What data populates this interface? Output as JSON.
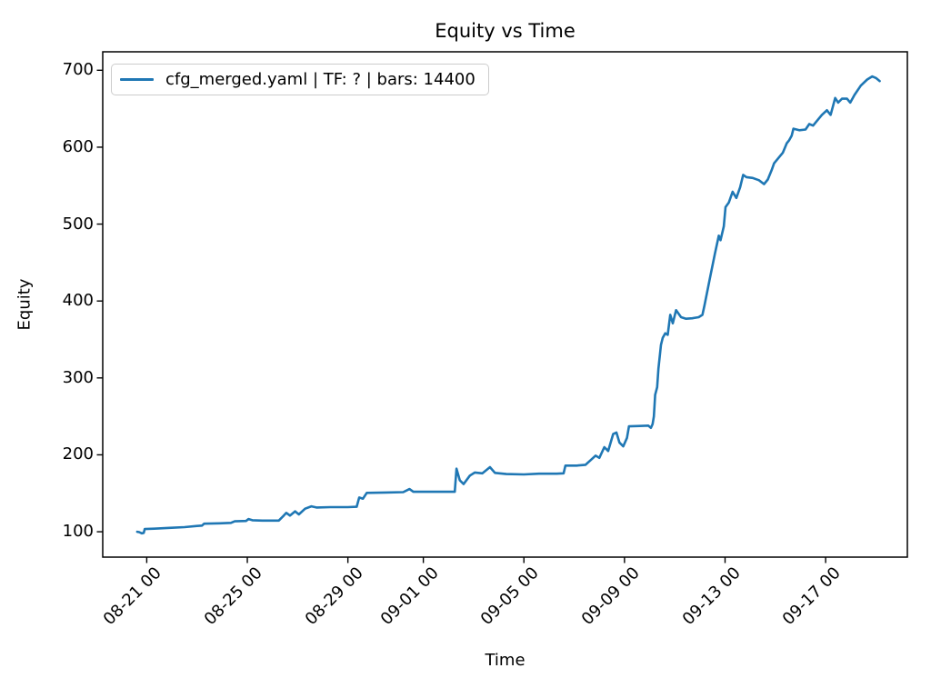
{
  "title": "Equity vs Time",
  "axes": {
    "xlabel": "Time",
    "ylabel": "Equity"
  },
  "legend": {
    "entries": [
      {
        "label": "cfg_merged.yaml | TF: ? | bars: 14400",
        "color": "#1f77b4"
      }
    ],
    "position": "upper left"
  },
  "colors": {
    "line": "#1f77b4",
    "spine": "#000000",
    "background": "#ffffff",
    "legend_border": "#cccccc"
  },
  "chart_data": {
    "type": "line",
    "title": "Equity vs Time",
    "xlabel": "Time",
    "ylabel": "Equity",
    "grid": false,
    "legend_position": "upper left",
    "x_unit": "days relative to tick 08-21 00 (labels are MM-DD HH)",
    "xlim": [
      -1.75,
      30.25
    ],
    "ylim": [
      67,
      724
    ],
    "x_ticks": [
      {
        "day": 0,
        "label": "08-21 00"
      },
      {
        "day": 4,
        "label": "08-25 00"
      },
      {
        "day": 8,
        "label": "08-29 00"
      },
      {
        "day": 11,
        "label": "09-01 00"
      },
      {
        "day": 15,
        "label": "09-05 00"
      },
      {
        "day": 19,
        "label": "09-09 00"
      },
      {
        "day": 23,
        "label": "09-13 00"
      },
      {
        "day": 27,
        "label": "09-17 00"
      }
    ],
    "y_ticks": [
      100,
      200,
      300,
      400,
      500,
      600,
      700
    ],
    "series": [
      {
        "name": "cfg_merged.yaml | TF: ? | bars: 14400",
        "color": "#1f77b4",
        "points": [
          [
            -0.38,
            100
          ],
          [
            -0.3,
            99.5
          ],
          [
            -0.2,
            98
          ],
          [
            -0.12,
            98.5
          ],
          [
            -0.08,
            103.5
          ],
          [
            0.3,
            104
          ],
          [
            0.9,
            105
          ],
          [
            1.5,
            106
          ],
          [
            2.0,
            107.5
          ],
          [
            2.2,
            108
          ],
          [
            2.28,
            110.5
          ],
          [
            2.9,
            111
          ],
          [
            3.35,
            111.5
          ],
          [
            3.5,
            113.5
          ],
          [
            3.95,
            114
          ],
          [
            4.05,
            116.5
          ],
          [
            4.2,
            115
          ],
          [
            4.6,
            114.5
          ],
          [
            5.25,
            114.5
          ],
          [
            5.45,
            121
          ],
          [
            5.55,
            124.5
          ],
          [
            5.7,
            121
          ],
          [
            5.9,
            126.5
          ],
          [
            6.05,
            122.5
          ],
          [
            6.3,
            130
          ],
          [
            6.55,
            133
          ],
          [
            6.75,
            131.5
          ],
          [
            7.3,
            132
          ],
          [
            8.0,
            132
          ],
          [
            8.35,
            132.5
          ],
          [
            8.45,
            144.5
          ],
          [
            8.6,
            143
          ],
          [
            8.75,
            150.5
          ],
          [
            9.5,
            151
          ],
          [
            10.2,
            151.5
          ],
          [
            10.45,
            155.5
          ],
          [
            10.6,
            152
          ],
          [
            11.5,
            152
          ],
          [
            12.25,
            152
          ],
          [
            12.32,
            182
          ],
          [
            12.45,
            167
          ],
          [
            12.6,
            162
          ],
          [
            12.85,
            173
          ],
          [
            13.05,
            177
          ],
          [
            13.35,
            176
          ],
          [
            13.65,
            184
          ],
          [
            13.85,
            176.5
          ],
          [
            14.3,
            175
          ],
          [
            15.0,
            174.5
          ],
          [
            15.6,
            175.5
          ],
          [
            16.3,
            175.5
          ],
          [
            16.58,
            176
          ],
          [
            16.65,
            186
          ],
          [
            17.1,
            186
          ],
          [
            17.45,
            187
          ],
          [
            17.65,
            193
          ],
          [
            17.85,
            199
          ],
          [
            18.0,
            196
          ],
          [
            18.2,
            210
          ],
          [
            18.35,
            205
          ],
          [
            18.55,
            227
          ],
          [
            18.68,
            229
          ],
          [
            18.8,
            216
          ],
          [
            18.95,
            211
          ],
          [
            19.1,
            222
          ],
          [
            19.18,
            237
          ],
          [
            19.6,
            237.5
          ],
          [
            19.95,
            238
          ],
          [
            20.05,
            235
          ],
          [
            20.12,
            240
          ],
          [
            20.17,
            250
          ],
          [
            20.22,
            278
          ],
          [
            20.3,
            288
          ],
          [
            20.35,
            312
          ],
          [
            20.45,
            343
          ],
          [
            20.52,
            352
          ],
          [
            20.62,
            358
          ],
          [
            20.72,
            356
          ],
          [
            20.82,
            382
          ],
          [
            20.92,
            371
          ],
          [
            21.05,
            388
          ],
          [
            21.25,
            379
          ],
          [
            21.45,
            377
          ],
          [
            21.7,
            377.5
          ],
          [
            21.95,
            379
          ],
          [
            22.1,
            382
          ],
          [
            22.18,
            394
          ],
          [
            22.4,
            430
          ],
          [
            22.6,
            462
          ],
          [
            22.75,
            485
          ],
          [
            22.82,
            479
          ],
          [
            22.95,
            497
          ],
          [
            23.02,
            522
          ],
          [
            23.15,
            528
          ],
          [
            23.3,
            542
          ],
          [
            23.45,
            534
          ],
          [
            23.6,
            548
          ],
          [
            23.72,
            564
          ],
          [
            23.85,
            561
          ],
          [
            24.1,
            560
          ],
          [
            24.35,
            557
          ],
          [
            24.55,
            552
          ],
          [
            24.7,
            558
          ],
          [
            24.85,
            570
          ],
          [
            24.95,
            579
          ],
          [
            25.1,
            585
          ],
          [
            25.3,
            593
          ],
          [
            25.45,
            605
          ],
          [
            25.55,
            609
          ],
          [
            25.65,
            615
          ],
          [
            25.72,
            624
          ],
          [
            25.95,
            622
          ],
          [
            26.2,
            623
          ],
          [
            26.35,
            630
          ],
          [
            26.5,
            628
          ],
          [
            26.65,
            634
          ],
          [
            26.85,
            642
          ],
          [
            27.05,
            648
          ],
          [
            27.2,
            642
          ],
          [
            27.38,
            664
          ],
          [
            27.5,
            658
          ],
          [
            27.65,
            663
          ],
          [
            27.85,
            663
          ],
          [
            27.98,
            658
          ],
          [
            28.15,
            668
          ],
          [
            28.4,
            680
          ],
          [
            28.65,
            688
          ],
          [
            28.85,
            692
          ],
          [
            29.0,
            690
          ],
          [
            29.15,
            686
          ]
        ]
      }
    ]
  }
}
